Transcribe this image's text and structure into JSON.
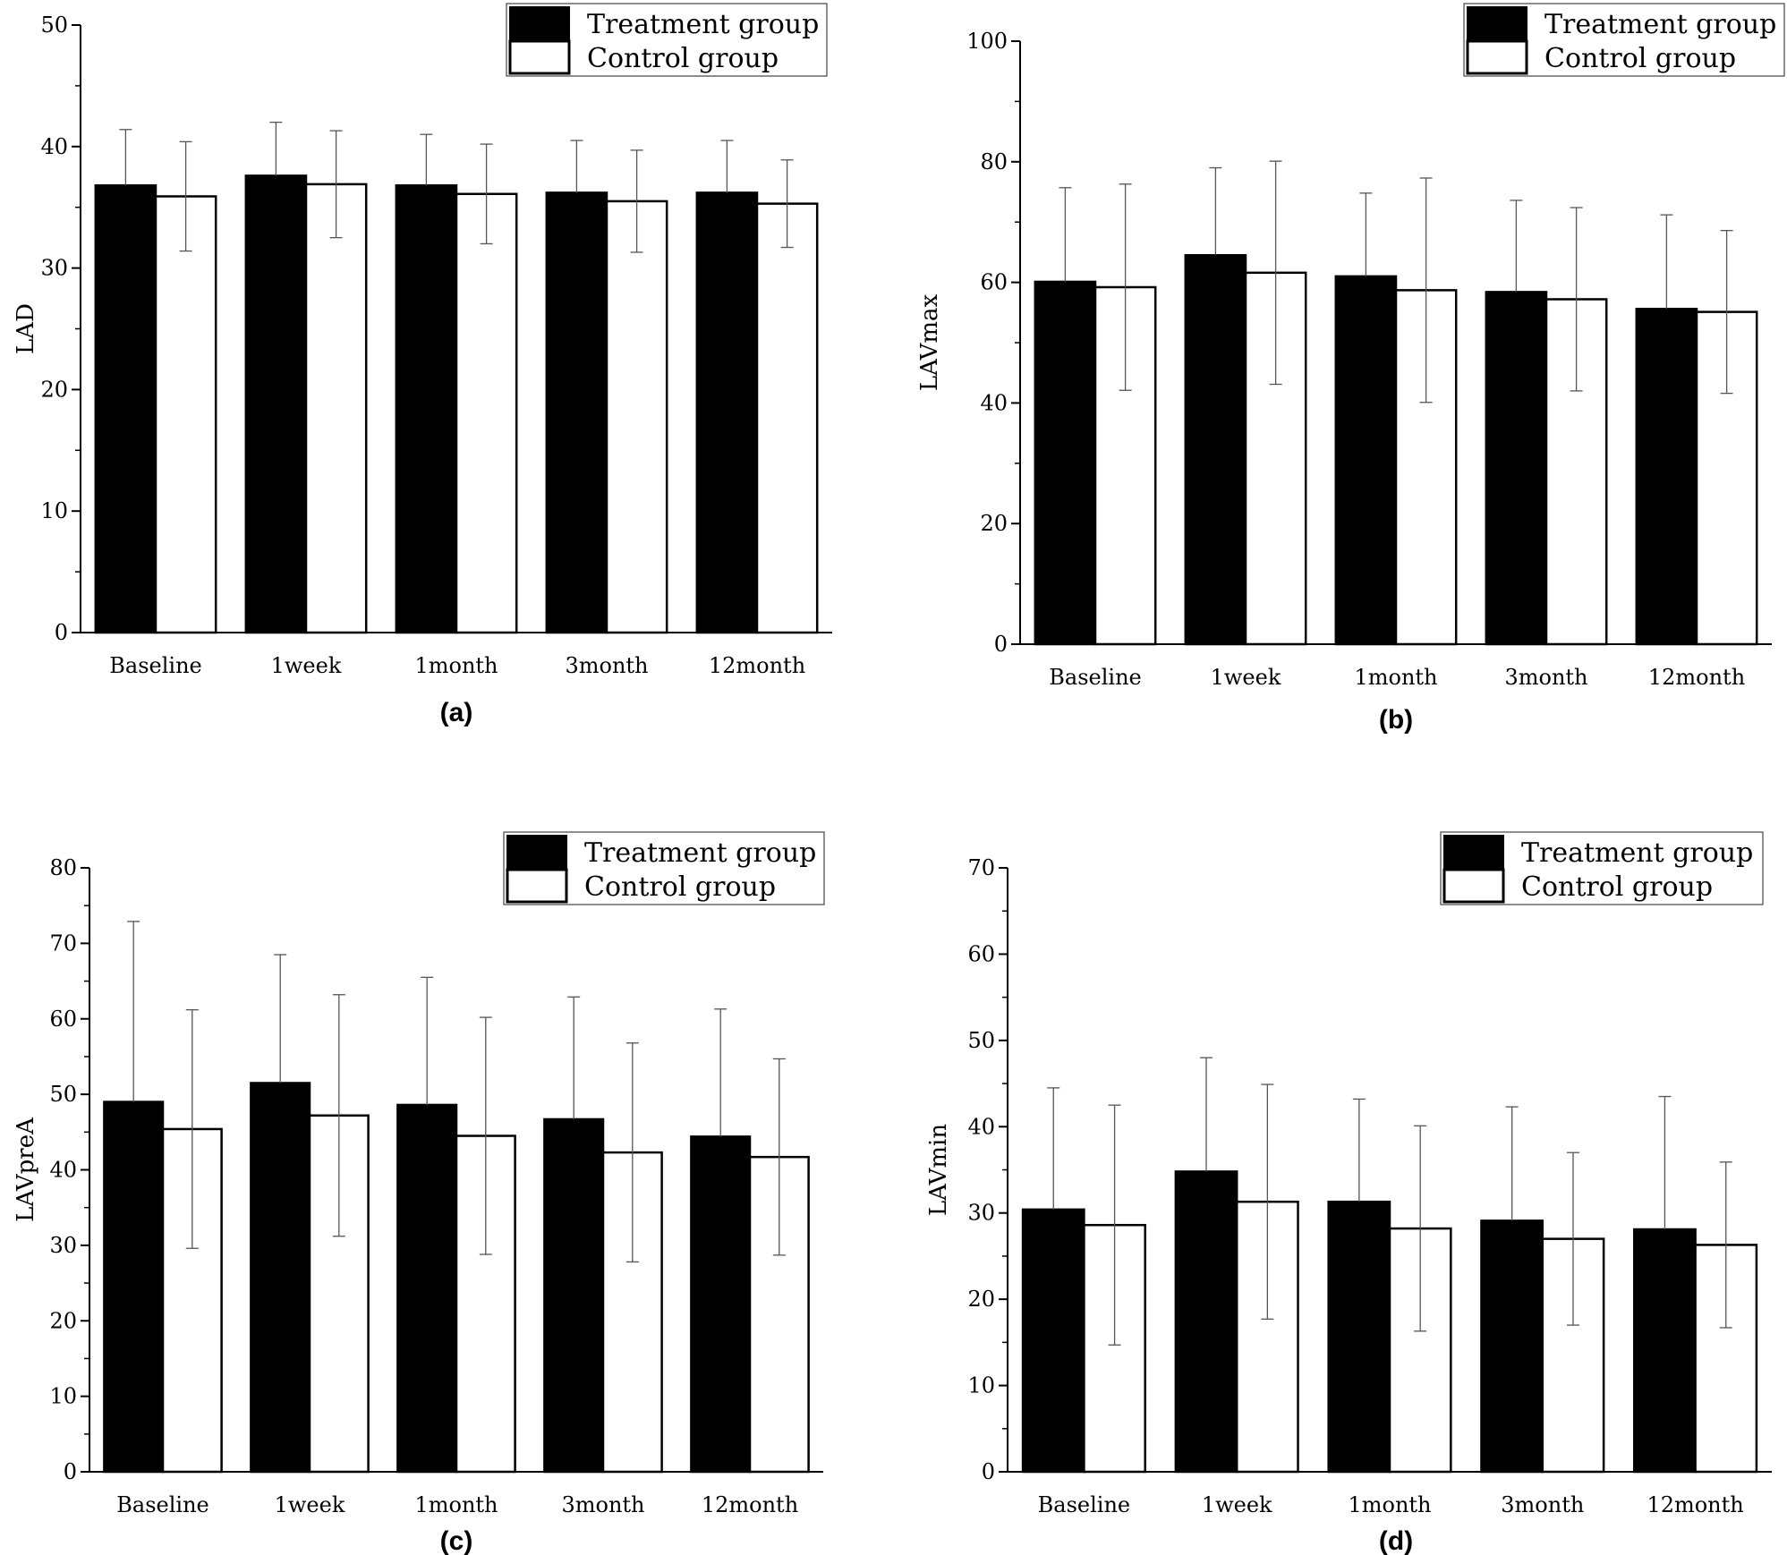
{
  "figure": {
    "legend": {
      "treatment": "Treatment group",
      "control": "Control group"
    },
    "colors": {
      "treatment": "#000000",
      "control": "#ffffff",
      "axis": "#000000",
      "error": "#555555"
    }
  },
  "chart_data": [
    {
      "type": "bar",
      "panel_label": "(a)",
      "ylabel": "LAD",
      "xlabel": "",
      "ylim": [
        0,
        50
      ],
      "yticks": [
        0,
        10,
        20,
        30,
        40,
        50
      ],
      "tick_labels": [
        "0",
        "10",
        "20",
        "30",
        "40",
        "50"
      ],
      "categories": [
        "Baseline",
        "1week",
        "1month",
        "3month",
        "12month"
      ],
      "series": [
        {
          "name": "Treatment group",
          "values": [
            36.8,
            37.6,
            36.8,
            36.2,
            36.2
          ],
          "error": [
            4.6,
            4.4,
            4.2,
            4.3,
            4.3
          ]
        },
        {
          "name": "Control group",
          "values": [
            35.9,
            36.9,
            36.1,
            35.5,
            35.3
          ],
          "error": [
            4.5,
            4.4,
            4.1,
            4.2,
            3.6
          ]
        }
      ],
      "legend_position": "top-right"
    },
    {
      "type": "bar",
      "panel_label": "(b)",
      "ylabel": "LAVmax",
      "xlabel": "",
      "ylim": [
        0,
        100
      ],
      "yticks": [
        0,
        20,
        40,
        60,
        80,
        100
      ],
      "tick_labels": [
        "0",
        "20",
        "40",
        "60",
        "80",
        "100"
      ],
      "categories": [
        "Baseline",
        "1week",
        "1month",
        "3month",
        "12month"
      ],
      "series": [
        {
          "name": "Treatment group",
          "values": [
            60.1,
            64.5,
            61.0,
            58.4,
            55.6
          ],
          "error": [
            15.6,
            14.5,
            13.8,
            15.2,
            15.6
          ]
        },
        {
          "name": "Control group",
          "values": [
            59.2,
            61.6,
            58.7,
            57.2,
            55.1
          ],
          "error": [
            17.1,
            18.5,
            18.6,
            15.2,
            13.5
          ]
        }
      ],
      "legend_position": "top-right"
    },
    {
      "type": "bar",
      "panel_label": "(c)",
      "ylabel": "LAVpreA",
      "xlabel": "",
      "ylim": [
        0,
        80
      ],
      "yticks": [
        0,
        10,
        20,
        30,
        40,
        50,
        60,
        70,
        80
      ],
      "tick_labels": [
        "0",
        "10",
        "20",
        "30",
        "40",
        "50",
        "60",
        "70",
        "80"
      ],
      "categories": [
        "Baseline",
        "1week",
        "1month",
        "3month",
        "12month"
      ],
      "series": [
        {
          "name": "Treatment group",
          "values": [
            49.0,
            51.5,
            48.6,
            46.7,
            44.4
          ],
          "error": [
            23.9,
            17.0,
            16.9,
            16.2,
            16.9
          ]
        },
        {
          "name": "Control group",
          "values": [
            45.4,
            47.2,
            44.5,
            42.3,
            41.7
          ],
          "error": [
            15.8,
            16.0,
            15.7,
            14.5,
            13.0
          ]
        }
      ],
      "legend_position": "top-right"
    },
    {
      "type": "bar",
      "panel_label": "(d)",
      "ylabel": "LAVmin",
      "xlabel": "",
      "ylim": [
        0,
        70
      ],
      "yticks": [
        0,
        10,
        20,
        30,
        40,
        50,
        60,
        70
      ],
      "tick_labels": [
        "0",
        "10",
        "20",
        "30",
        "40",
        "50",
        "60",
        "70"
      ],
      "categories": [
        "Baseline",
        "1week",
        "1month",
        "3month",
        "12month"
      ],
      "series": [
        {
          "name": "Treatment group",
          "values": [
            30.4,
            34.8,
            31.3,
            29.1,
            28.1
          ],
          "error": [
            14.1,
            13.2,
            11.9,
            13.2,
            15.4
          ]
        },
        {
          "name": "Control group",
          "values": [
            28.6,
            31.3,
            28.2,
            27.0,
            26.3
          ],
          "error": [
            13.9,
            13.6,
            11.9,
            10.0,
            9.6
          ]
        }
      ],
      "legend_position": "top-right"
    }
  ]
}
